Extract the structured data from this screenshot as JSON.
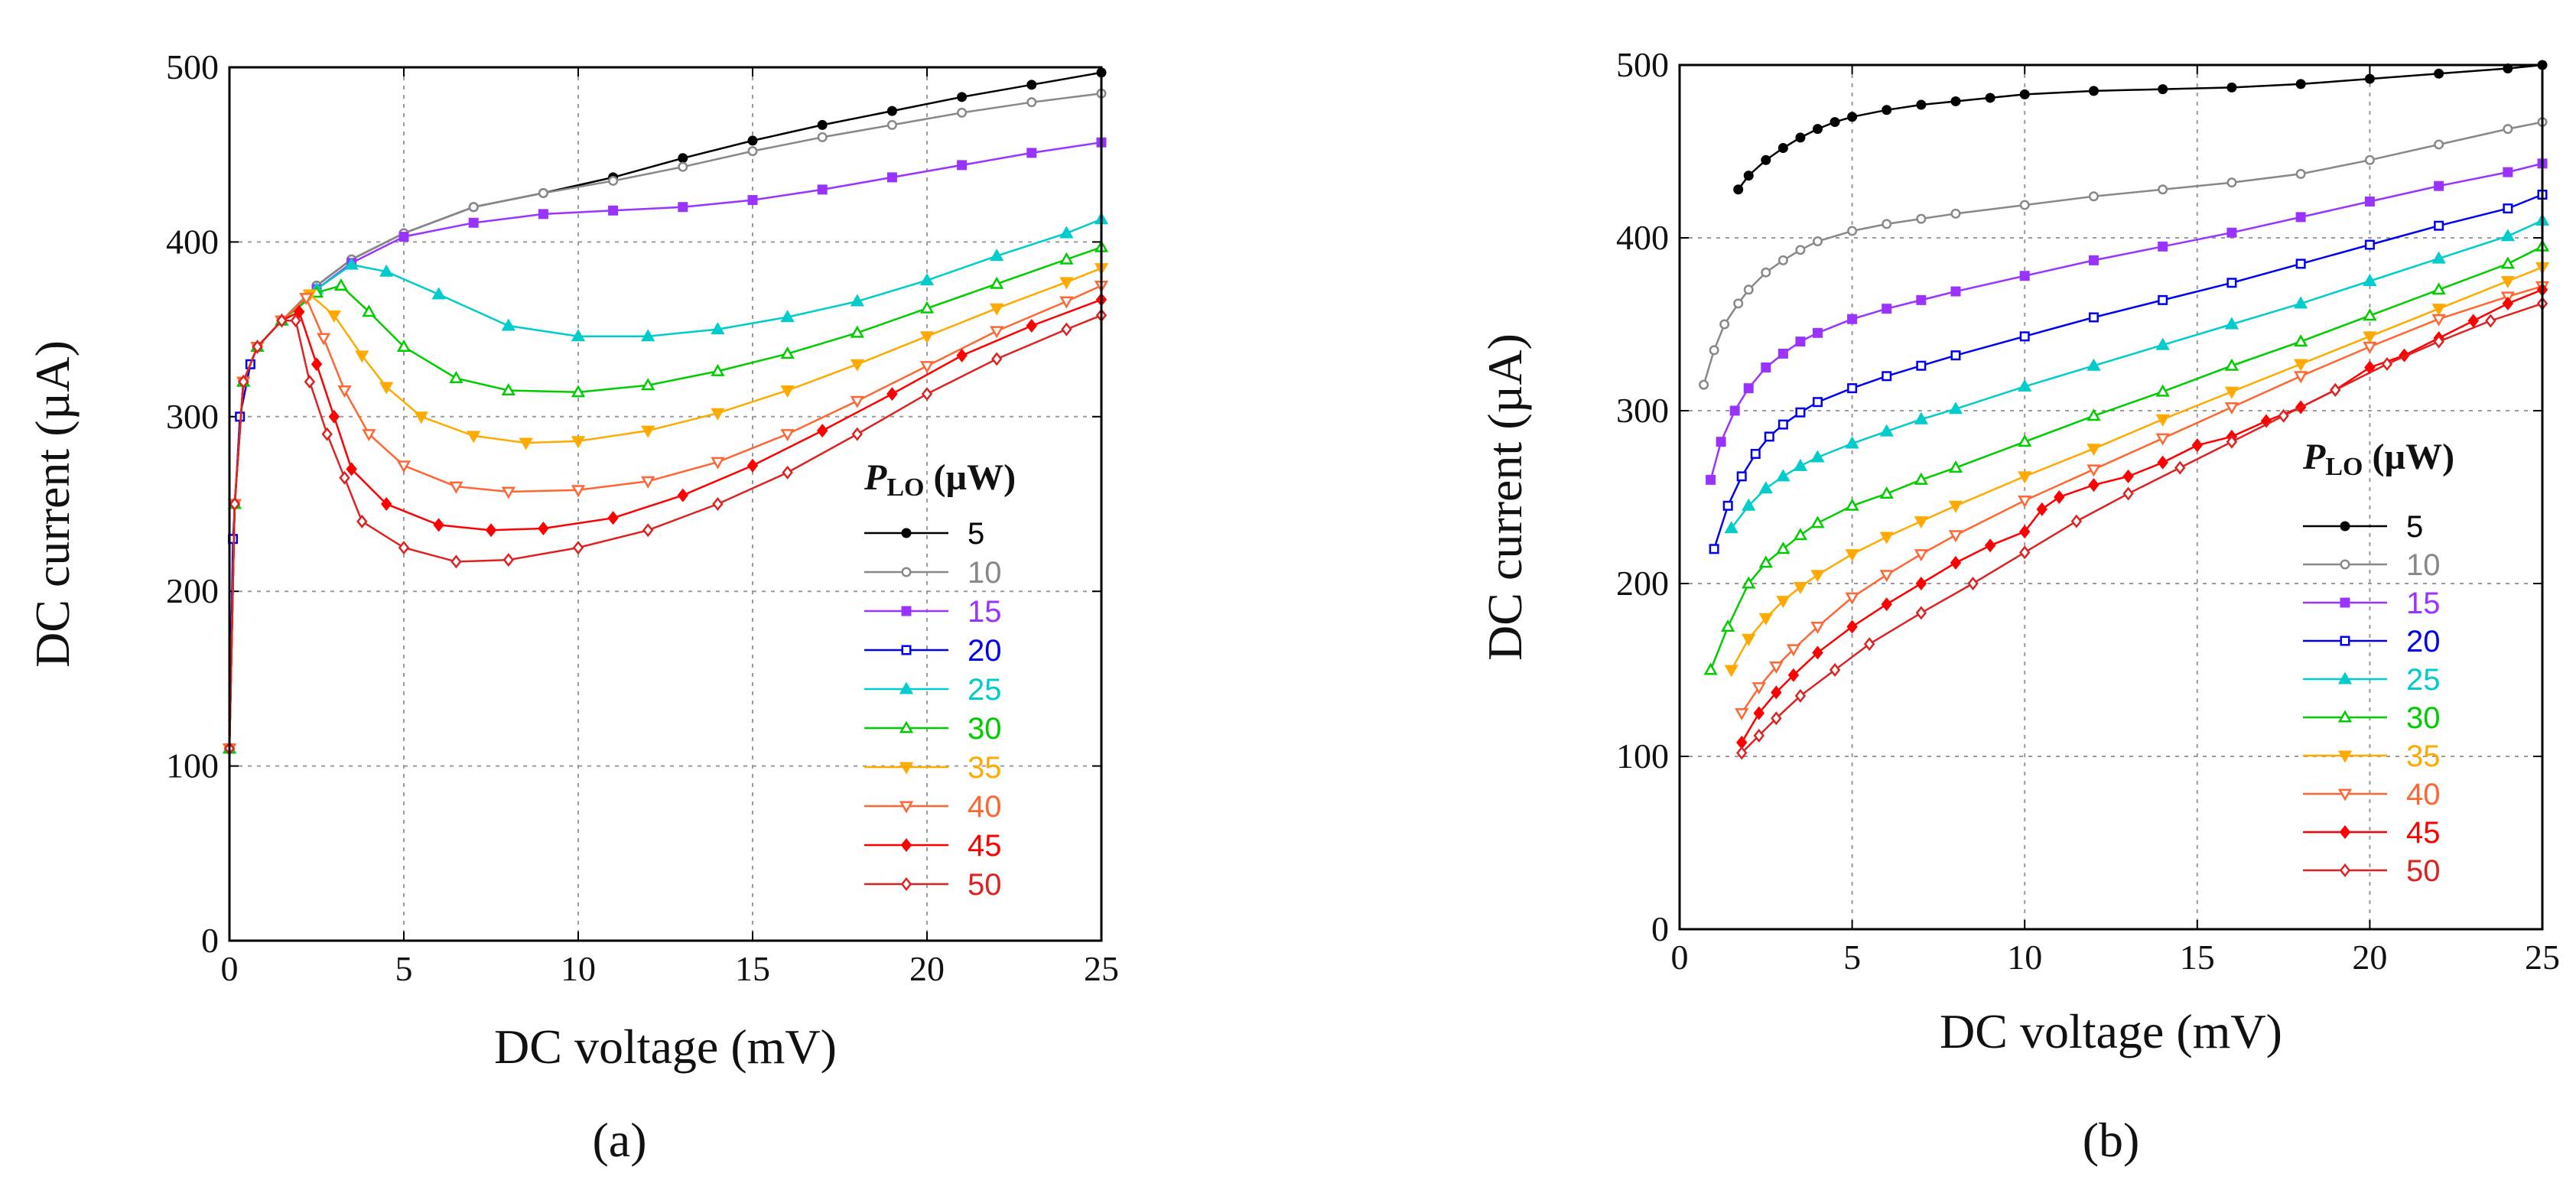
{
  "chart_data": [
    {
      "type": "line",
      "panel_label": "(a)",
      "xlabel": "DC voltage (mV)",
      "ylabel": "DC current (µA)",
      "xlim": [
        0,
        25
      ],
      "ylim": [
        0,
        500
      ],
      "xticks": [
        "0",
        "5",
        "10",
        "15",
        "20",
        "25"
      ],
      "yticks": [
        "0",
        "100",
        "200",
        "300",
        "400",
        "500"
      ],
      "grid": true,
      "legend_title": "P",
      "legend_title_sub": "LO",
      "legend_title_unit": " (µW)",
      "legend_position": "right",
      "series": [
        {
          "name": "5",
          "color": "#000000",
          "marker": "circle-filled",
          "x": [
            0.0,
            0.15,
            0.4,
            0.8,
            1.5,
            2.5,
            3.5,
            5,
            7,
            9,
            11,
            13,
            15,
            17,
            19,
            21,
            23,
            25
          ],
          "values": [
            110,
            250,
            320,
            340,
            355,
            375,
            390,
            405,
            420,
            428,
            437,
            448,
            458,
            467,
            475,
            483,
            490,
            497
          ]
        },
        {
          "name": "10",
          "color": "#888888",
          "marker": "circle-open",
          "x": [
            0.0,
            0.15,
            0.4,
            0.8,
            1.5,
            2.5,
            3.5,
            5,
            7,
            9,
            11,
            13,
            15,
            17,
            19,
            21,
            23,
            25
          ],
          "values": [
            110,
            250,
            320,
            340,
            355,
            375,
            390,
            405,
            420,
            428,
            435,
            443,
            452,
            460,
            467,
            474,
            480,
            485
          ]
        },
        {
          "name": "15",
          "color": "#9933ff",
          "marker": "square-filled",
          "x": [
            0.0,
            0.15,
            0.4,
            0.8,
            1.5,
            2.5,
            3.5,
            5,
            7,
            9,
            11,
            13,
            15,
            17,
            19,
            21,
            23,
            25
          ],
          "values": [
            110,
            250,
            320,
            340,
            355,
            373,
            388,
            403,
            411,
            416,
            418,
            420,
            424,
            430,
            437,
            444,
            451,
            457
          ]
        },
        {
          "name": "20",
          "color": "#0000ee",
          "marker": "square-open",
          "x": [
            0.0,
            0.1,
            0.3,
            0.6
          ],
          "values": [
            110,
            230,
            300,
            330
          ]
        },
        {
          "name": "25",
          "color": "#00cccc",
          "marker": "triangle-filled",
          "x": [
            0.0,
            0.15,
            0.4,
            0.8,
            1.5,
            2.5,
            3.5,
            4.5,
            6,
            8,
            10,
            12,
            14,
            16,
            18,
            20,
            22,
            24,
            25
          ],
          "values": [
            110,
            250,
            320,
            340,
            355,
            373,
            387,
            383,
            370,
            352,
            346,
            346,
            350,
            357,
            366,
            378,
            392,
            405,
            413
          ]
        },
        {
          "name": "30",
          "color": "#00cc00",
          "marker": "triangle-open",
          "x": [
            0.0,
            0.15,
            0.4,
            0.8,
            1.5,
            2.5,
            3.2,
            4,
            5,
            6.5,
            8,
            10,
            12,
            14,
            16,
            18,
            20,
            22,
            24,
            25
          ],
          "values": [
            110,
            250,
            320,
            340,
            355,
            371,
            375,
            360,
            340,
            322,
            315,
            314,
            318,
            326,
            336,
            348,
            362,
            376,
            390,
            397
          ]
        },
        {
          "name": "35",
          "color": "#ffaa00",
          "marker": "tri-down-filled",
          "x": [
            0.0,
            0.15,
            0.4,
            0.8,
            1.5,
            2.3,
            3,
            3.8,
            4.5,
            5.5,
            7,
            8.5,
            10,
            12,
            14,
            16,
            18,
            20,
            22,
            24,
            25
          ],
          "values": [
            110,
            250,
            320,
            340,
            355,
            370,
            358,
            335,
            317,
            300,
            289,
            285,
            286,
            292,
            302,
            315,
            330,
            346,
            362,
            377,
            385
          ]
        },
        {
          "name": "40",
          "color": "#ff6633",
          "marker": "tri-down-open",
          "x": [
            0.0,
            0.15,
            0.4,
            0.8,
            1.5,
            2.2,
            2.7,
            3.3,
            4,
            5,
            6.5,
            8,
            10,
            12,
            14,
            16,
            18,
            20,
            22,
            24,
            25
          ],
          "values": [
            110,
            250,
            320,
            340,
            355,
            368,
            345,
            315,
            290,
            272,
            260,
            257,
            258,
            263,
            274,
            290,
            309,
            329,
            349,
            366,
            375
          ]
        },
        {
          "name": "45",
          "color": "#ff0000",
          "marker": "diamond-filled",
          "x": [
            0.0,
            0.15,
            0.4,
            0.8,
            1.5,
            2,
            2.5,
            3,
            3.5,
            4.5,
            6,
            7.5,
            9,
            11,
            13,
            15,
            17,
            19,
            21,
            23,
            25
          ],
          "values": [
            110,
            250,
            320,
            340,
            355,
            360,
            330,
            300,
            270,
            250,
            238,
            235,
            236,
            242,
            255,
            272,
            292,
            313,
            335,
            352,
            367
          ]
        },
        {
          "name": "50",
          "color": "#dd2222",
          "marker": "diamond-open",
          "x": [
            0.0,
            0.15,
            0.4,
            0.8,
            1.5,
            1.9,
            2.3,
            2.8,
            3.3,
            3.8,
            5,
            6.5,
            8,
            10,
            12,
            14,
            16,
            18,
            20,
            22,
            24,
            25
          ],
          "values": [
            110,
            250,
            320,
            340,
            355,
            355,
            320,
            290,
            265,
            240,
            225,
            217,
            218,
            225,
            235,
            250,
            268,
            290,
            313,
            333,
            350,
            358
          ]
        }
      ]
    },
    {
      "type": "line",
      "panel_label": "(b)",
      "xlabel": "DC voltage (mV)",
      "ylabel": "DC current (µA)",
      "xlim": [
        0,
        25
      ],
      "ylim": [
        0,
        500
      ],
      "xticks": [
        "0",
        "5",
        "10",
        "15",
        "20",
        "25"
      ],
      "yticks": [
        "0",
        "100",
        "200",
        "300",
        "400",
        "500"
      ],
      "grid": true,
      "legend_title": "P",
      "legend_title_sub": "LO",
      "legend_title_unit": " (µW)",
      "legend_position": "right",
      "series": [
        {
          "name": "5",
          "color": "#000000",
          "marker": "circle-filled",
          "x": [
            1.7,
            2,
            2.5,
            3,
            3.5,
            4,
            4.5,
            5,
            6,
            7,
            8,
            9,
            10,
            12,
            14,
            16,
            18,
            20,
            22,
            24,
            25
          ],
          "values": [
            428,
            436,
            445,
            452,
            458,
            463,
            467,
            470,
            474,
            477,
            479,
            481,
            483,
            485,
            486,
            487,
            489,
            492,
            495,
            498,
            500
          ]
        },
        {
          "name": "10",
          "color": "#888888",
          "marker": "circle-open",
          "x": [
            0.7,
            1,
            1.3,
            1.7,
            2,
            2.5,
            3,
            3.5,
            4,
            5,
            6,
            7,
            8,
            10,
            12,
            14,
            16,
            18,
            20,
            22,
            24,
            25
          ],
          "values": [
            315,
            335,
            350,
            362,
            370,
            380,
            387,
            393,
            398,
            404,
            408,
            411,
            414,
            419,
            424,
            428,
            432,
            437,
            445,
            454,
            463,
            467
          ]
        },
        {
          "name": "15",
          "color": "#9933ff",
          "marker": "square-filled",
          "x": [
            0.9,
            1.2,
            1.6,
            2,
            2.5,
            3,
            3.5,
            4,
            5,
            6,
            7,
            8,
            10,
            12,
            14,
            16,
            18,
            20,
            22,
            24,
            25
          ],
          "values": [
            260,
            282,
            300,
            313,
            325,
            333,
            340,
            345,
            353,
            359,
            364,
            369,
            378,
            387,
            395,
            403,
            412,
            421,
            430,
            438,
            443
          ]
        },
        {
          "name": "20",
          "color": "#0000ee",
          "marker": "square-open",
          "x": [
            1.0,
            1.4,
            1.8,
            2.2,
            2.6,
            3,
            3.5,
            4,
            5,
            6,
            7,
            8,
            10,
            12,
            14,
            16,
            18,
            20,
            22,
            24,
            25
          ],
          "values": [
            220,
            245,
            262,
            275,
            285,
            292,
            299,
            305,
            313,
            320,
            326,
            332,
            343,
            354,
            364,
            374,
            385,
            396,
            407,
            417,
            425
          ]
        },
        {
          "name": "25",
          "color": "#00cccc",
          "marker": "triangle-filled",
          "x": [
            1.5,
            2,
            2.5,
            3,
            3.5,
            4,
            5,
            6,
            7,
            8,
            10,
            12,
            14,
            16,
            18,
            20,
            22,
            24,
            25
          ],
          "values": [
            232,
            245,
            255,
            262,
            268,
            273,
            281,
            288,
            295,
            301,
            314,
            326,
            338,
            350,
            362,
            375,
            388,
            401,
            410
          ]
        },
        {
          "name": "30",
          "color": "#00cc00",
          "marker": "triangle-open",
          "x": [
            0.9,
            1.4,
            2,
            2.5,
            3,
            3.5,
            4,
            5,
            6,
            7,
            8,
            10,
            12,
            14,
            16,
            18,
            20,
            22,
            24,
            25
          ],
          "values": [
            150,
            175,
            200,
            212,
            220,
            228,
            235,
            245,
            252,
            260,
            267,
            282,
            297,
            311,
            326,
            340,
            355,
            370,
            385,
            395
          ]
        },
        {
          "name": "35",
          "color": "#ffaa00",
          "marker": "tri-down-filled",
          "x": [
            1.5,
            2,
            2.5,
            3,
            3.5,
            4,
            5,
            6,
            7,
            8,
            10,
            12,
            14,
            16,
            18,
            20,
            22,
            24,
            25
          ],
          "values": [
            150,
            168,
            180,
            190,
            198,
            205,
            217,
            227,
            236,
            245,
            262,
            278,
            295,
            311,
            327,
            343,
            359,
            375,
            383
          ]
        },
        {
          "name": "40",
          "color": "#ff6633",
          "marker": "tri-down-open",
          "x": [
            1.8,
            2.3,
            2.8,
            3.3,
            4,
            5,
            6,
            7,
            8,
            10,
            12,
            14,
            16,
            18,
            20,
            22,
            24,
            25
          ],
          "values": [
            125,
            140,
            152,
            162,
            175,
            192,
            205,
            217,
            228,
            248,
            266,
            284,
            302,
            320,
            337,
            353,
            366,
            372
          ]
        },
        {
          "name": "45",
          "color": "#ff0000",
          "marker": "diamond-filled",
          "x": [
            1.8,
            2.3,
            2.8,
            3.3,
            4,
            5,
            6,
            7,
            8,
            9,
            10,
            10.5,
            11,
            12,
            13,
            14,
            15,
            16,
            17,
            18,
            19,
            20,
            21,
            22,
            23,
            24,
            25
          ],
          "values": [
            108,
            125,
            137,
            147,
            160,
            175,
            188,
            200,
            212,
            222,
            230,
            243,
            250,
            257,
            262,
            270,
            280,
            285,
            294,
            302,
            312,
            325,
            332,
            342,
            352,
            362,
            370
          ]
        },
        {
          "name": "50",
          "color": "#dd2222",
          "marker": "diamond-open",
          "x": [
            1.8,
            2.3,
            2.8,
            3.5,
            4.5,
            5.5,
            7,
            8.5,
            10,
            11.5,
            13,
            14.5,
            16,
            17.5,
            19,
            20.5,
            22,
            23.5,
            25
          ],
          "values": [
            102,
            112,
            122,
            135,
            150,
            165,
            183,
            200,
            218,
            236,
            252,
            267,
            282,
            297,
            312,
            327,
            340,
            352,
            362
          ]
        }
      ]
    }
  ]
}
